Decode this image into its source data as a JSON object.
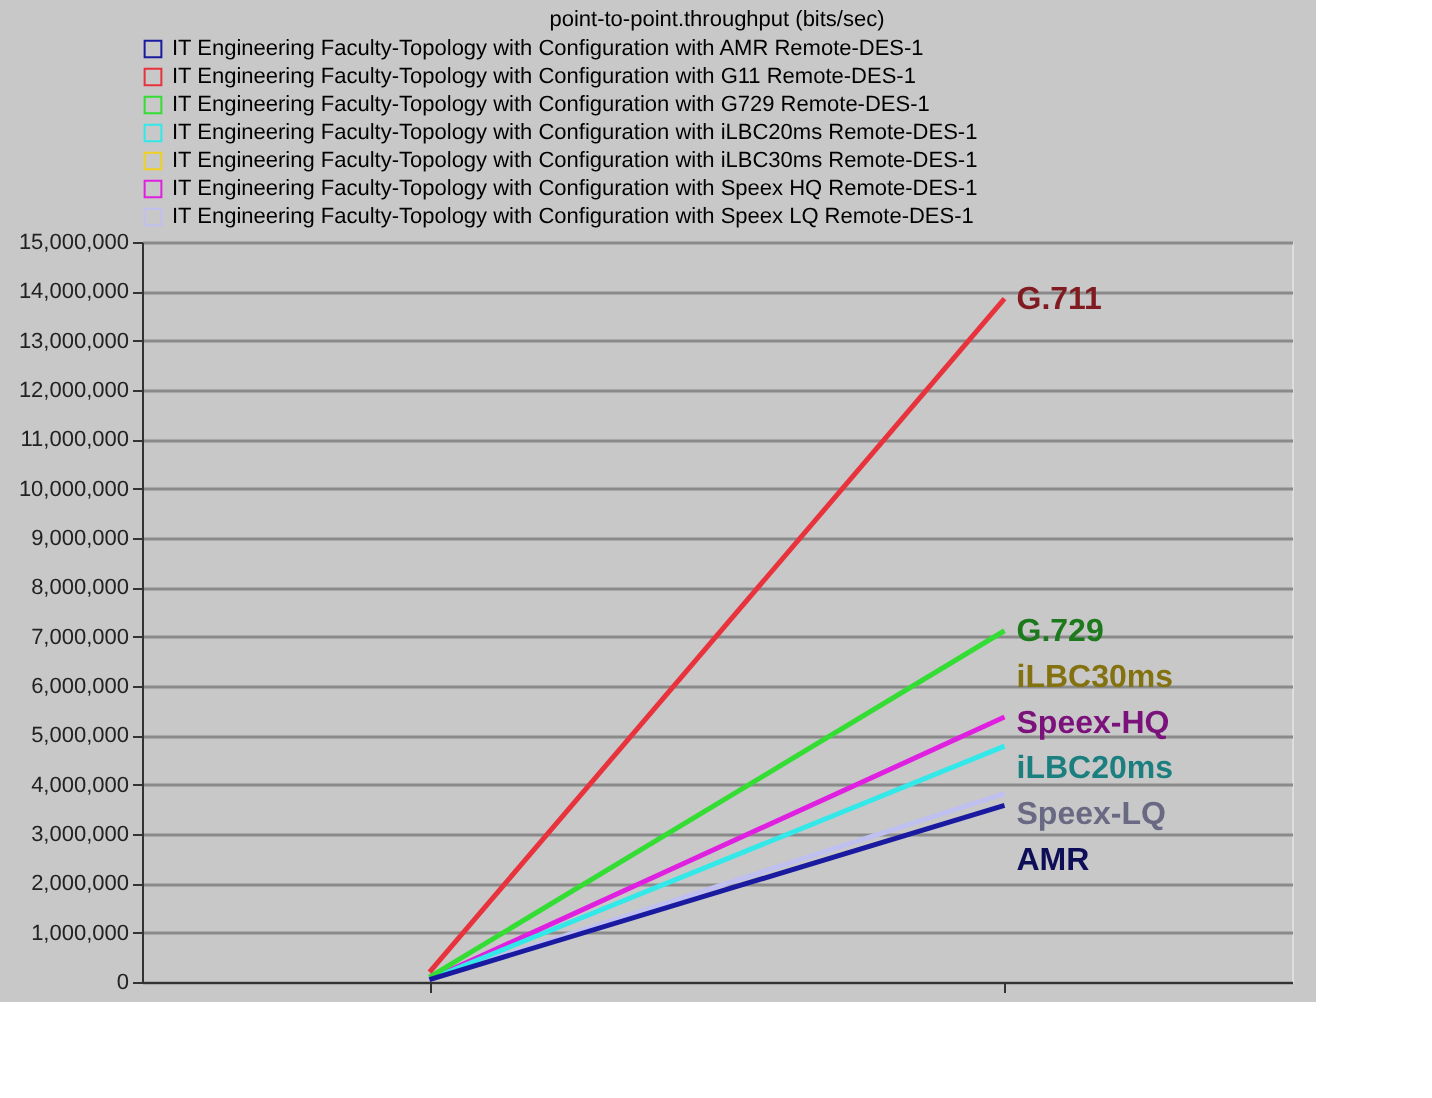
{
  "chart_data": {
    "type": "line",
    "title": "point-to-point.throughput (bits/sec)",
    "categories": [
      null,
      null
    ],
    "series": [
      {
        "name": "IT Engineering Faculty-Topology with Configuration with AMR Remote-DES-1",
        "color": "#1a1aa0",
        "values": [
          50000,
          3580000
        ]
      },
      {
        "name": "IT Engineering Faculty-Topology with Configuration with G11 Remote-DES-1",
        "color": "#e8323c",
        "values": [
          200000,
          13850000
        ]
      },
      {
        "name": "IT Engineering Faculty-Topology with Configuration with G729 Remote-DES-1",
        "color": "#33dd33",
        "values": [
          100000,
          7120000
        ]
      },
      {
        "name": "IT Engineering Faculty-Topology with Configuration with iLBC20ms Remote-DES-1",
        "color": "#33e8e8",
        "values": [
          50000,
          4780000
        ]
      },
      {
        "name": "IT Engineering Faculty-Topology with Configuration with iLBC30ms Remote-DES-1",
        "color": "#f0d020",
        "values": [
          null,
          null
        ]
      },
      {
        "name": "IT Engineering Faculty-Topology with Configuration with Speex HQ Remote-DES-1",
        "color": "#e020e0",
        "values": [
          50000,
          5370000
        ]
      },
      {
        "name": "IT Engineering Faculty-Topology with Configuration with Speex LQ Remote-DES-1",
        "color": "#c0c0f0",
        "values": [
          50000,
          3820000
        ]
      }
    ],
    "annotations": [
      "AMR",
      "G.711",
      "G.729",
      "iLBC20ms",
      "iLBC30ms",
      "Speex-HQ",
      "Speex-LQ"
    ],
    "ylim": [
      0,
      15000000
    ],
    "yticks": [
      0,
      {
        "value": 1000000,
        "label": "1,000,000"
      },
      {
        "value": 2000000,
        "label": "2,000,000"
      },
      {
        "value": 3000000,
        "label": "3,000,000"
      },
      {
        "value": 4000000,
        "label": "4,000,000"
      },
      {
        "value": 5000000,
        "label": "5,000,000"
      },
      {
        "value": 6000000,
        "label": "6,000,000"
      },
      {
        "value": 7000000,
        "label": "7,000,000"
      },
      {
        "value": 8000000,
        "label": "8,000,000"
      },
      {
        "value": 9000000,
        "label": "9,000,000"
      },
      {
        "value": 10000000,
        "label": "10,000,000"
      },
      {
        "value": 11000000,
        "label": "11,000,000"
      },
      {
        "value": 12000000,
        "label": "12,000,000"
      },
      {
        "value": 13000000,
        "label": "13,000,000"
      },
      {
        "value": 14000000,
        "label": "14,000,000"
      },
      {
        "value": 15000000,
        "label": "15,000,000"
      }
    ],
    "grid": "y",
    "legend": "top",
    "tick_labels": "y",
    "marker": "none",
    "line_style": "solid"
  }
}
